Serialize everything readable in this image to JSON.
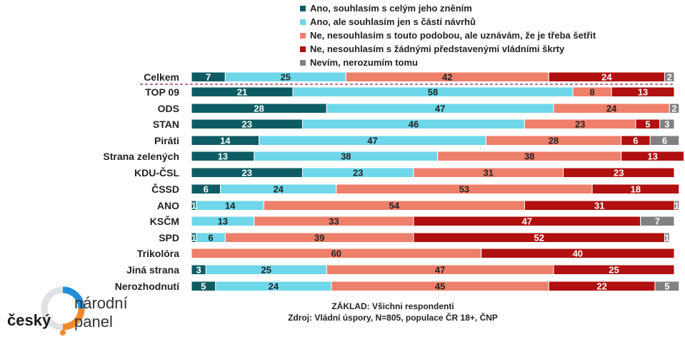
{
  "legend": [
    {
      "label": "Ano, souhlasím s celým jeho zněním",
      "color": "#0d5c63"
    },
    {
      "label": "Ano, ale souhlasím jen s částí návrhů",
      "color": "#6fd7ea"
    },
    {
      "label": "Ne, nesouhlasím s touto podobou, ale uznávám, že je třeba šetřit",
      "color": "#ee7f6a"
    },
    {
      "label": "Ne, nesouhlasím s žádnými představenými vládními škrty",
      "color": "#b0100f"
    },
    {
      "label": "Nevím, nerozumím tomu",
      "color": "#808080"
    }
  ],
  "chart_data": {
    "type": "bar",
    "orientation": "horizontal",
    "stacked": true,
    "categories": [
      "Celkem",
      "TOP 09",
      "ODS",
      "STAN",
      "Piráti",
      "Strana zelených",
      "KDU-ČSL",
      "ČSSD",
      "ANO",
      "KSČM",
      "SPD",
      "Trikolóra",
      "Jiná strana",
      "Nerozhodnutí"
    ],
    "series": [
      {
        "name": "Ano, souhlasím s celým jeho zněním",
        "values": [
          7,
          21,
          28,
          23,
          14,
          13,
          23,
          6,
          1,
          0,
          1,
          0,
          3,
          5
        ]
      },
      {
        "name": "Ano, ale souhlasím jen s částí návrhů",
        "values": [
          25,
          58,
          47,
          46,
          47,
          38,
          23,
          24,
          14,
          13,
          6,
          0,
          25,
          24
        ]
      },
      {
        "name": "Ne, nesouhlasím s touto podobou, ale uznávám, že je třeba šetřit",
        "values": [
          42,
          8,
          24,
          23,
          28,
          38,
          31,
          53,
          54,
          33,
          39,
          60,
          47,
          45
        ]
      },
      {
        "name": "Ne, nesouhlasím s žádnými představenými vládními škrty",
        "values": [
          24,
          13,
          0,
          5,
          6,
          13,
          23,
          18,
          31,
          47,
          52,
          40,
          25,
          22
        ]
      },
      {
        "name": "Nevím, nerozumím tomu",
        "values": [
          2,
          0,
          2,
          3,
          6,
          0,
          0,
          0,
          1,
          7,
          1,
          0,
          0,
          5
        ]
      }
    ],
    "xlim": [
      0,
      100
    ],
    "grid": false,
    "legend_position": "top"
  },
  "footer": {
    "base": "ZÁKLAD: Všichni respondenti",
    "source": "Zdroj: Vládní úspory, N=805, populace ČR 18+, ČNP"
  },
  "logo": {
    "word1": "český",
    "word2": "národní",
    "word3": "panel"
  }
}
